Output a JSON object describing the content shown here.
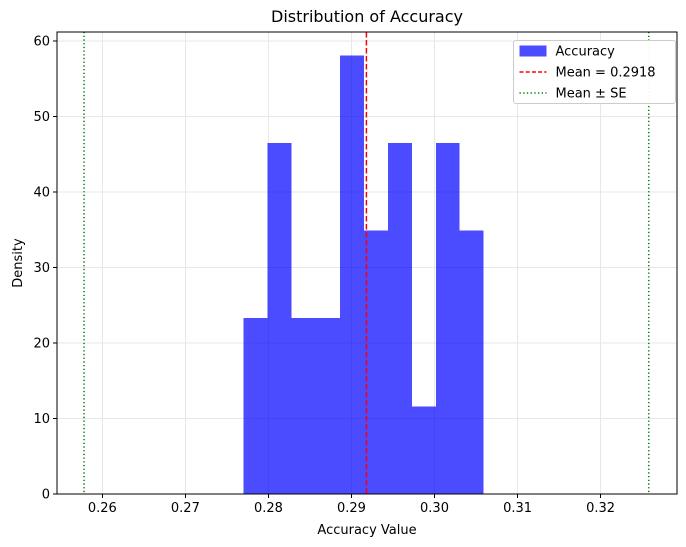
{
  "chart_data": {
    "type": "bar",
    "subtype": "histogram",
    "title": "Distribution of Accuracy",
    "xlabel": "Accuracy Value",
    "ylabel": "Density",
    "xlim": [
      0.25454,
      0.3292
    ],
    "ylim": [
      0,
      61.2
    ],
    "x_ticks": [
      0.26,
      0.27,
      0.28,
      0.29,
      0.3,
      0.31,
      0.32
    ],
    "x_tick_labels": [
      "0.26",
      "0.27",
      "0.28",
      "0.29",
      "0.30",
      "0.31",
      "0.32"
    ],
    "y_ticks": [
      0,
      10,
      20,
      30,
      40,
      50,
      60
    ],
    "y_tick_labels": [
      "0",
      "10",
      "20",
      "30",
      "40",
      "50",
      "60"
    ],
    "grid": true,
    "bin_edges": [
      0.277,
      0.2799,
      0.2828,
      0.2857,
      0.2886,
      0.2915,
      0.2944,
      0.2973,
      0.3002,
      0.303,
      0.3059
    ],
    "densities": [
      23.3,
      46.5,
      23.3,
      23.3,
      58.1,
      34.9,
      46.5,
      11.6,
      46.5,
      34.9
    ],
    "counts": [
      2,
      4,
      2,
      2,
      5,
      3,
      4,
      1,
      4,
      3
    ],
    "mean": 0.2918,
    "se": 0.034,
    "se_lines": [
      0.2578,
      0.3258
    ],
    "legend_position": "upper right",
    "legend": [
      {
        "label": "Accuracy",
        "handle": "patch",
        "color": "#0000ff"
      },
      {
        "label": "Mean = 0.2918",
        "handle": "dashed",
        "color": "#ff0000"
      },
      {
        "label": "Mean ± SE",
        "handle": "dotted",
        "color": "#008000"
      }
    ],
    "colors": {
      "bar_fill": "#0000ff",
      "bar_opacity": 0.7,
      "mean_line": "#ff0000",
      "se_line": "#008000",
      "grid": "#e7e7e7",
      "axis": "#000000",
      "legend_border": "#cccccc",
      "background": "#ffffff"
    }
  }
}
